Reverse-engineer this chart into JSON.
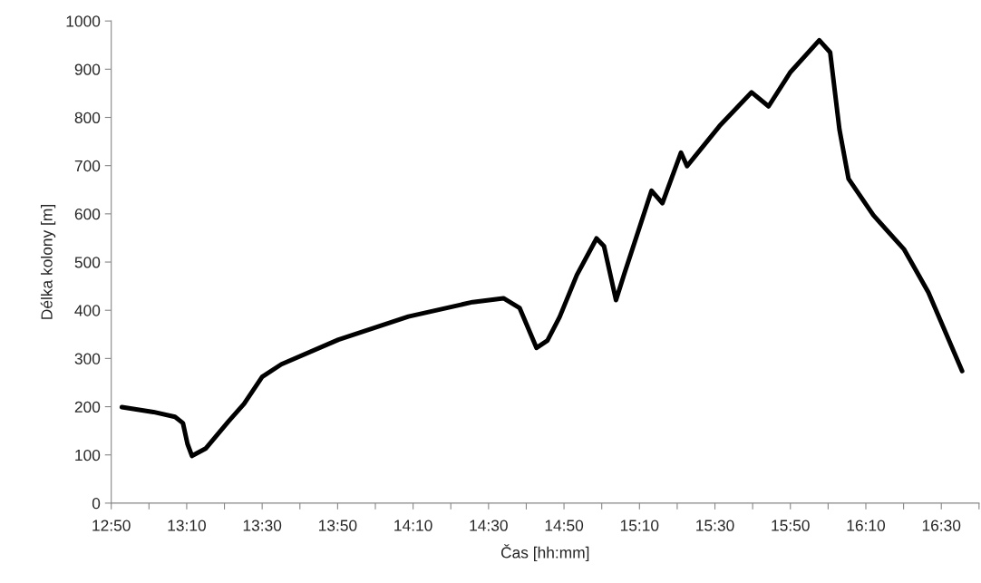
{
  "chart_data": {
    "type": "line",
    "xlabel": "Čas [hh:mm]",
    "ylabel": "Délka kolony [m]",
    "series": [
      {
        "color": "#000000",
        "x": [
          12.88,
          13.02,
          13.115,
          13.15,
          13.17,
          13.19,
          13.25,
          13.35,
          13.42,
          13.5,
          13.585,
          13.837,
          14.146,
          14.43,
          14.566,
          14.637,
          14.712,
          14.76,
          14.814,
          14.89,
          14.977,
          15.01,
          15.063,
          15.1,
          15.22,
          15.268,
          15.35,
          15.377,
          15.52,
          15.662,
          15.737,
          15.832,
          15.961,
          16.009,
          16.05,
          16.09,
          16.2,
          16.336,
          16.443,
          16.592
        ],
        "values": [
          199,
          189,
          179,
          166,
          123,
          98,
          113,
          169,
          206,
          262,
          288,
          339,
          387,
          417,
          425,
          405,
          322,
          337,
          386,
          473,
          549,
          533,
          421,
          476,
          648,
          622,
          727,
          699,
          782,
          852,
          823,
          893,
          960,
          935,
          775,
          673,
          597,
          526,
          437,
          274
        ]
      }
    ],
    "xlim": [
      12.8333333,
      16.6666667
    ],
    "xticks": [
      {
        "value": 12.8333333,
        "label": "12:50"
      },
      {
        "value": 13.0,
        "label": null
      },
      {
        "value": 13.1666667,
        "label": "13:10"
      },
      {
        "value": 13.3333333,
        "label": null
      },
      {
        "value": 13.5,
        "label": "13:30"
      },
      {
        "value": 13.6666667,
        "label": null
      },
      {
        "value": 13.8333333,
        "label": "13:50"
      },
      {
        "value": 14.0,
        "label": null
      },
      {
        "value": 14.1666667,
        "label": "14:10"
      },
      {
        "value": 14.3333333,
        "label": null
      },
      {
        "value": 14.5,
        "label": "14:30"
      },
      {
        "value": 14.6666667,
        "label": null
      },
      {
        "value": 14.8333333,
        "label": "14:50"
      },
      {
        "value": 15.0,
        "label": null
      },
      {
        "value": 15.1666667,
        "label": "15:10"
      },
      {
        "value": 15.3333333,
        "label": null
      },
      {
        "value": 15.5,
        "label": "15:30"
      },
      {
        "value": 15.6666667,
        "label": null
      },
      {
        "value": 15.8333333,
        "label": "15:50"
      },
      {
        "value": 16.0,
        "label": null
      },
      {
        "value": 16.1666667,
        "label": "16:10"
      },
      {
        "value": 16.3333333,
        "label": null
      },
      {
        "value": 16.5,
        "label": "16:30"
      },
      {
        "value": 16.6666667,
        "label": null
      }
    ],
    "ylim": [
      0,
      1000
    ],
    "yticks": [
      0,
      100,
      200,
      300,
      400,
      500,
      600,
      700,
      800,
      900,
      1000
    ],
    "grid": false,
    "legend": false,
    "marker": "none",
    "line_style": "solid"
  }
}
